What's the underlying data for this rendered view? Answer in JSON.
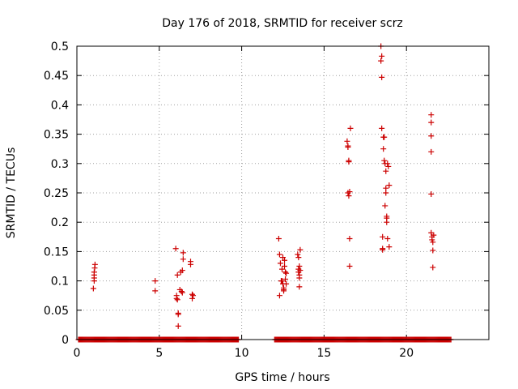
{
  "chart_data": {
    "type": "scatter",
    "title": "Day 176 of 2018, SRMTID for receiver scrz",
    "xlabel": "GPS time / hours",
    "ylabel": "SRMTID / TECUs",
    "xlim": [
      0,
      25
    ],
    "ylim": [
      0,
      0.5
    ],
    "xticks": [
      0,
      5,
      10,
      15,
      20
    ],
    "xtick_labels": [
      "0",
      "5",
      "10",
      "15",
      "20"
    ],
    "yticks": [
      0,
      0.05,
      0.1,
      0.15,
      0.2,
      0.25,
      0.3,
      0.35,
      0.4,
      0.45,
      0.5
    ],
    "ytick_labels": [
      "0",
      "0.05",
      "0.1",
      "0.15",
      "0.2",
      "0.25",
      "0.3",
      "0.35",
      "0.4",
      "0.45",
      "0.5"
    ],
    "grid": true,
    "marker": "+",
    "color": "#cc0000",
    "series": [
      {
        "points": [
          [
            1.0,
            0.087
          ],
          [
            1.05,
            0.1
          ],
          [
            1.05,
            0.105
          ],
          [
            1.05,
            0.11
          ],
          [
            1.05,
            0.115
          ],
          [
            1.08,
            0.122
          ],
          [
            1.1,
            0.128
          ],
          [
            4.75,
            0.083
          ],
          [
            4.75,
            0.1
          ],
          [
            6.0,
            0.155
          ],
          [
            6.05,
            0.075
          ],
          [
            6.05,
            0.07
          ],
          [
            6.1,
            0.068
          ],
          [
            6.1,
            0.11
          ],
          [
            6.15,
            0.045
          ],
          [
            6.15,
            0.043
          ],
          [
            6.15,
            0.023
          ],
          [
            6.25,
            0.085
          ],
          [
            6.3,
            0.115
          ],
          [
            6.35,
            0.082
          ],
          [
            6.4,
            0.08
          ],
          [
            6.4,
            0.118
          ],
          [
            6.45,
            0.148
          ],
          [
            6.45,
            0.137
          ],
          [
            6.9,
            0.133
          ],
          [
            6.9,
            0.128
          ],
          [
            7.0,
            0.077
          ],
          [
            7.0,
            0.07
          ],
          [
            7.05,
            0.075
          ],
          [
            12.25,
            0.172
          ],
          [
            12.3,
            0.145
          ],
          [
            12.3,
            0.075
          ],
          [
            12.35,
            0.13
          ],
          [
            12.4,
            0.1
          ],
          [
            12.45,
            0.12
          ],
          [
            12.45,
            0.1
          ],
          [
            12.5,
            0.095
          ],
          [
            12.5,
            0.14
          ],
          [
            12.55,
            0.088
          ],
          [
            12.55,
            0.085
          ],
          [
            12.55,
            0.083
          ],
          [
            12.6,
            0.135
          ],
          [
            12.6,
            0.125
          ],
          [
            12.65,
            0.115
          ],
          [
            12.65,
            0.103
          ],
          [
            12.7,
            0.113
          ],
          [
            12.7,
            0.095
          ],
          [
            13.4,
            0.145
          ],
          [
            13.45,
            0.14
          ],
          [
            13.45,
            0.12
          ],
          [
            13.45,
            0.115
          ],
          [
            13.5,
            0.125
          ],
          [
            13.5,
            0.11
          ],
          [
            13.5,
            0.105
          ],
          [
            13.5,
            0.09
          ],
          [
            13.55,
            0.153
          ],
          [
            13.55,
            0.118
          ],
          [
            16.4,
            0.338
          ],
          [
            16.45,
            0.33
          ],
          [
            16.45,
            0.328
          ],
          [
            16.45,
            0.25
          ],
          [
            16.5,
            0.305
          ],
          [
            16.5,
            0.245
          ],
          [
            16.5,
            0.303
          ],
          [
            16.55,
            0.252
          ],
          [
            16.55,
            0.172
          ],
          [
            16.55,
            0.125
          ],
          [
            16.6,
            0.36
          ],
          [
            18.45,
            0.5
          ],
          [
            18.45,
            0.475
          ],
          [
            18.5,
            0.483
          ],
          [
            18.5,
            0.447
          ],
          [
            18.5,
            0.36
          ],
          [
            18.55,
            0.175
          ],
          [
            18.55,
            0.155
          ],
          [
            18.55,
            0.153
          ],
          [
            18.6,
            0.345
          ],
          [
            18.6,
            0.325
          ],
          [
            18.65,
            0.345
          ],
          [
            18.65,
            0.305
          ],
          [
            18.7,
            0.3
          ],
          [
            18.7,
            0.228
          ],
          [
            18.75,
            0.287
          ],
          [
            18.75,
            0.258
          ],
          [
            18.75,
            0.25
          ],
          [
            18.8,
            0.21
          ],
          [
            18.8,
            0.207
          ],
          [
            18.8,
            0.2
          ],
          [
            18.85,
            0.172
          ],
          [
            18.85,
            0.3
          ],
          [
            18.9,
            0.295
          ],
          [
            18.95,
            0.263
          ],
          [
            18.95,
            0.158
          ],
          [
            21.5,
            0.383
          ],
          [
            21.5,
            0.37
          ],
          [
            21.5,
            0.347
          ],
          [
            21.5,
            0.32
          ],
          [
            21.5,
            0.248
          ],
          [
            21.5,
            0.182
          ],
          [
            21.55,
            0.175
          ],
          [
            21.55,
            0.17
          ],
          [
            21.6,
            0.166
          ],
          [
            21.6,
            0.152
          ],
          [
            21.6,
            0.123
          ],
          [
            21.65,
            0.178
          ]
        ],
        "zero_ranges": [
          [
            0.1,
            9.8
          ],
          [
            12.0,
            22.7
          ]
        ]
      }
    ]
  }
}
